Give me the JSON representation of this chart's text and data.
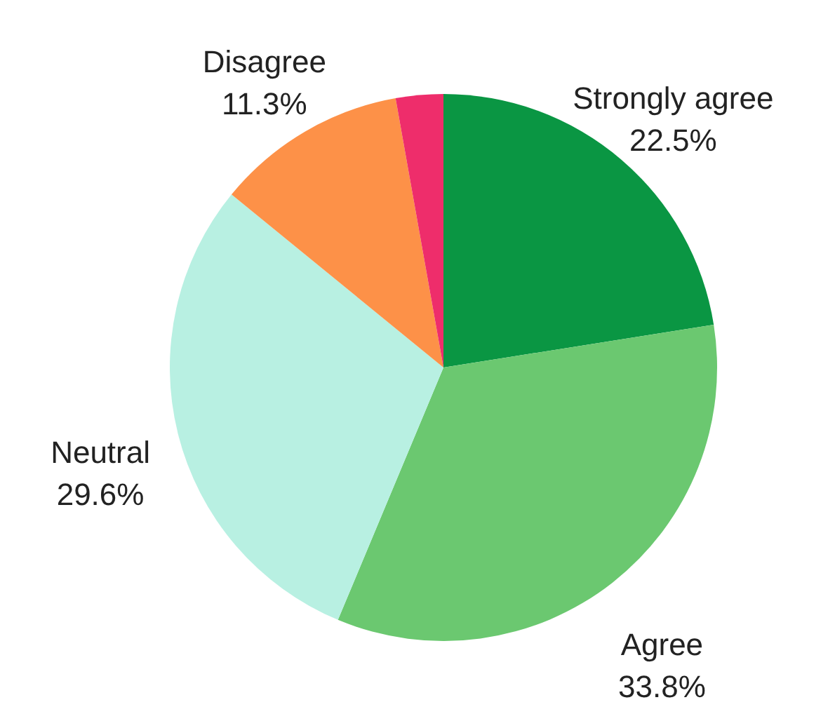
{
  "chart_data": {
    "type": "pie",
    "categories": [
      "Strongly agree",
      "Agree",
      "Neutral",
      "Disagree",
      null
    ],
    "values": [
      22.5,
      33.8,
      29.6,
      11.3,
      2.8
    ],
    "value_labels": [
      "22.5%",
      "33.8%",
      "29.6%",
      "11.3%",
      null
    ],
    "colors": [
      "#0a9643",
      "#6bc870",
      "#b8f0e2",
      "#fd9148",
      "#ee2d6b"
    ]
  }
}
